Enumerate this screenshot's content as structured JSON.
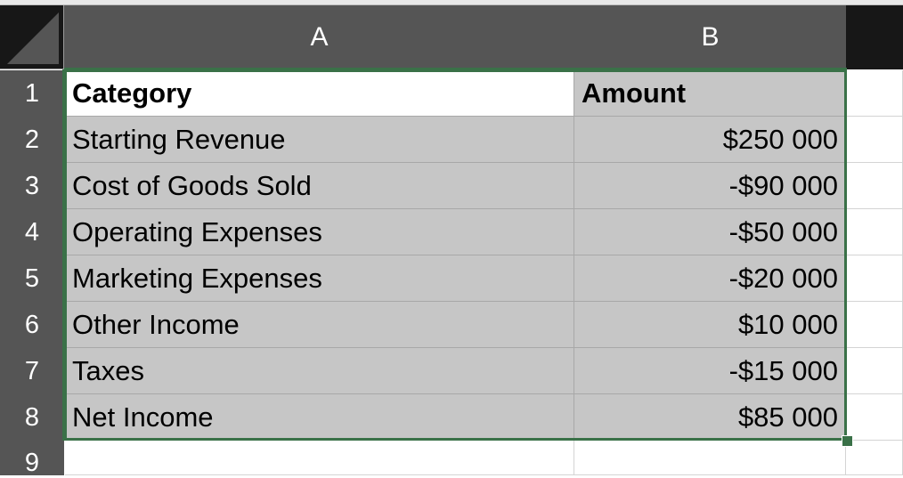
{
  "columns": [
    "A",
    "B"
  ],
  "rows": [
    {
      "num": "1",
      "a": "Category",
      "b": "Amount"
    },
    {
      "num": "2",
      "a": "Starting Revenue",
      "b": "$250 000"
    },
    {
      "num": "3",
      "a": "Cost of Goods Sold",
      "b": "-$90 000"
    },
    {
      "num": "4",
      "a": "Operating Expenses",
      "b": "-$50 000"
    },
    {
      "num": "5",
      "a": "Marketing Expenses",
      "b": "-$20 000"
    },
    {
      "num": "6",
      "a": "Other Income",
      "b": "$10 000"
    },
    {
      "num": "7",
      "a": "Taxes",
      "b": "-$15 000"
    },
    {
      "num": "8",
      "a": "Net Income",
      "b": "$85 000"
    },
    {
      "num": "9",
      "a": "",
      "b": ""
    }
  ],
  "colors": {
    "selection_border": "#3a7148",
    "selection_fill": "#c6c6c6",
    "header_bg": "#555555"
  },
  "selection": "A1:B8",
  "active_cell": "A1"
}
